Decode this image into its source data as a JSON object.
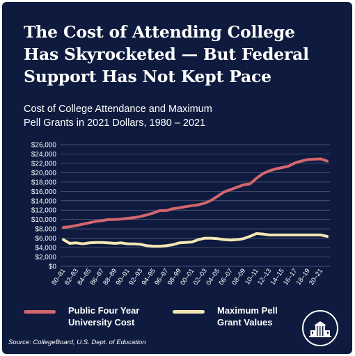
{
  "title": {
    "line1": "The Cost of Attending College",
    "line2": "Has Skyrocketed — But Federal",
    "line3": "Support Has Not Kept Pace"
  },
  "subtitle": {
    "line1": "Cost of College Attendance and Maximum",
    "line2": "Pell Grants in 2021 Dollars, 1980 – 2021"
  },
  "legend": {
    "public_line1": "Public Four Year",
    "public_line2": "University Cost",
    "pell_line1": "Maximum Pell",
    "pell_line2": "Grant Values"
  },
  "source": "Source: CollegeBoard, U.S. Dept. of Education",
  "colors": {
    "background": "#0e1b3f",
    "public_cost": "#d3666d",
    "pell_grant": "#f3e6b4",
    "grid": "#9ea3b5",
    "text": "#ffffff"
  },
  "icons": {
    "seal": "white-house-seal-icon"
  },
  "chart_data": {
    "type": "line",
    "grid": true,
    "legend_position": "bottom",
    "ylim": [
      0,
      26000
    ],
    "y_ticks": [
      "$0",
      "$2,000",
      "$4,000",
      "$6,000",
      "$8,000",
      "$10,000",
      "$12,000",
      "$14,000",
      "$16,000",
      "$18,000",
      "$20,000",
      "$22,000",
      "$24,000",
      "$26,000"
    ],
    "x_tick_labels": [
      "80–81",
      "82–83",
      "84–85",
      "86–87",
      "88–89",
      "90–91",
      "92–93",
      "94–95",
      "96–97",
      "98–99",
      "00–01",
      "02–03",
      "04–05",
      "06–07",
      "08–09",
      "10–11",
      "12–13",
      "14–15",
      "16–17",
      "18–19",
      "20–21"
    ],
    "x": [
      "80–81",
      "81–82",
      "82–83",
      "83–84",
      "84–85",
      "85–86",
      "86–87",
      "87–88",
      "88–89",
      "89–90",
      "90–91",
      "91–92",
      "92–93",
      "93–94",
      "94–95",
      "95–96",
      "96–97",
      "97–98",
      "98–99",
      "99–00",
      "00–01",
      "01–02",
      "02–03",
      "03–04",
      "04–05",
      "05–06",
      "06–07",
      "07–08",
      "08–09",
      "09–10",
      "10–11",
      "11–12",
      "12–13",
      "13–14",
      "14–15",
      "15–16",
      "16–17",
      "17–18",
      "18–19",
      "19–20",
      "20–21",
      "21–22"
    ],
    "series": [
      {
        "name": "Public Four Year University Cost",
        "values": [
          8300,
          8450,
          8700,
          9000,
          9300,
          9600,
          9750,
          10000,
          10000,
          10100,
          10250,
          10400,
          10650,
          11000,
          11400,
          11900,
          11900,
          12300,
          12500,
          12750,
          12950,
          13150,
          13500,
          14100,
          15000,
          15900,
          16400,
          16900,
          17400,
          17600,
          18800,
          19800,
          20400,
          20800,
          21100,
          21400,
          22100,
          22500,
          22800,
          22900,
          22950,
          22500
        ]
      },
      {
        "name": "Maximum Pell Grant Values",
        "values": [
          5700,
          4900,
          5000,
          4800,
          5000,
          5100,
          5100,
          5000,
          4900,
          5000,
          4800,
          4800,
          4700,
          4400,
          4300,
          4300,
          4400,
          4600,
          5000,
          5100,
          5200,
          5700,
          6000,
          6000,
          5900,
          5700,
          5600,
          5700,
          5900,
          6400,
          7000,
          6900,
          6700,
          6700,
          6700,
          6700,
          6700,
          6700,
          6700,
          6700,
          6700,
          6400
        ]
      }
    ]
  }
}
